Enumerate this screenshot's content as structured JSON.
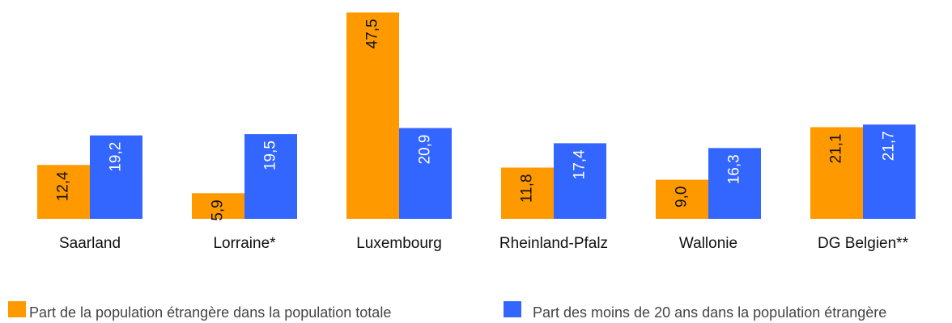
{
  "chart_data": {
    "type": "bar",
    "categories": [
      "Saarland",
      "Lorraine*",
      "Luxembourg",
      "Rheinland-Pfalz",
      "Wallonie",
      "DG Belgien**"
    ],
    "series": [
      {
        "name": "Part de la population étrangère dans la population totale",
        "color": "#ff9900",
        "values": [
          12.4,
          5.9,
          47.5,
          11.8,
          9.0,
          21.1
        ],
        "value_labels": [
          "12,4",
          "5,9",
          "47,5",
          "11,8",
          "9,0",
          "21,1"
        ]
      },
      {
        "name": "Part des moins de 20 ans dans la population étrangère",
        "color": "#3366ff",
        "values": [
          19.2,
          19.5,
          20.9,
          17.4,
          16.3,
          21.7
        ],
        "value_labels": [
          "19,2",
          "19,5",
          "20,9",
          "17,4",
          "16,3",
          "21,7"
        ]
      }
    ]
  }
}
